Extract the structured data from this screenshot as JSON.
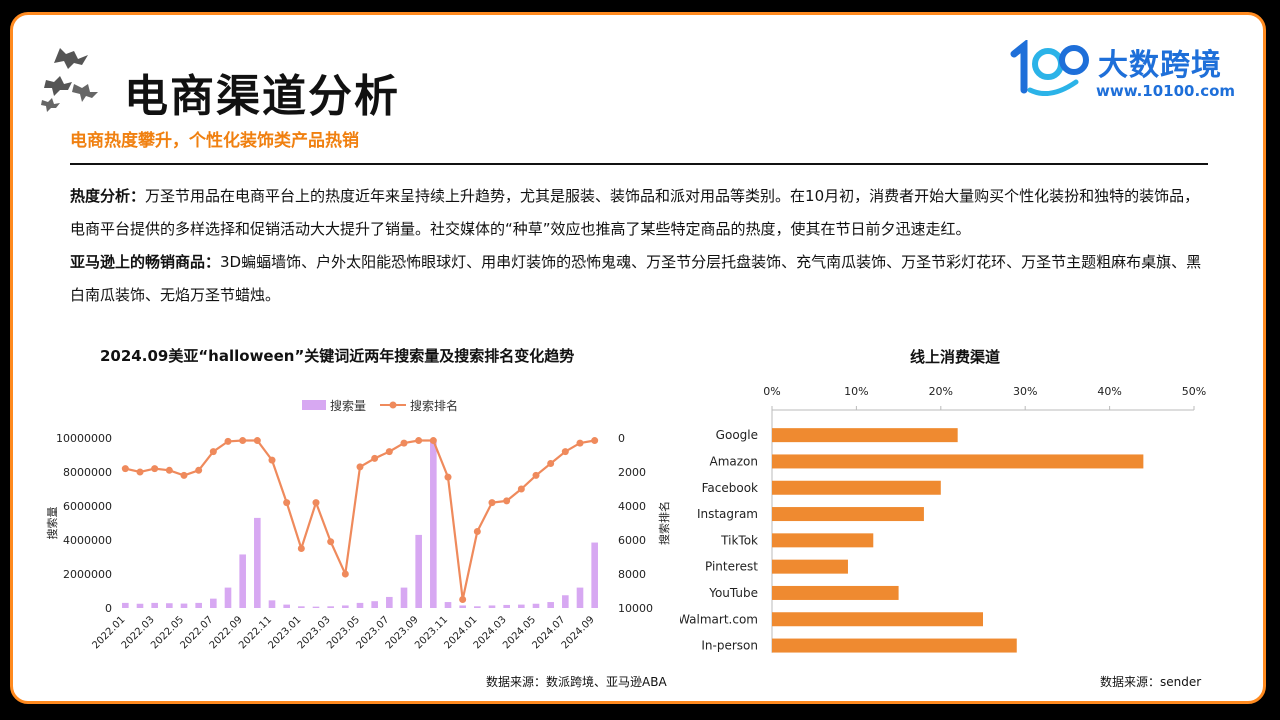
{
  "header": {
    "title": "电商渠道分析",
    "subtitle": "电商热度攀升，个性化装饰类产品热销"
  },
  "logo": {
    "brand": "大数跨境",
    "url": "www.10100.com"
  },
  "body": {
    "p1_label": "热度分析：",
    "p1_text": "万圣节用品在电商平台上的热度近年来呈持续上升趋势，尤其是服装、装饰品和派对用品等类别。在10月初，消费者开始大量购买个性化装扮和独特的装饰品，电商平台提供的多样选择和促销活动大大提升了销量。社交媒体的“种草”效应也推高了某些特定商品的热度，使其在节日前夕迅速走红。",
    "p2_label": "亚马逊上的畅销商品：",
    "p2_text": "3D蝙蝠墙饰、户外太阳能恐怖眼球灯、用串灯装饰的恐怖鬼魂、万圣节分层托盘装饰、充气南瓜装饰、万圣节彩灯花环、万圣节主题粗麻布桌旗、黑白南瓜装饰、无焰万圣节蜡烛。"
  },
  "colors": {
    "accent": "#f08010",
    "frame": "#ff8a1f",
    "bar_purple": "#d7a8f2",
    "line_orange": "#ef8a5c",
    "hbar_orange": "#ef8a30",
    "logo_blue": "#1e6fd9"
  },
  "chart_data": [
    {
      "type": "bar+line",
      "title": "2024.09美亚“halloween”关键词近两年搜索量及搜索排名变化趋势",
      "ylabel": "搜索量",
      "y2label": "搜索排名",
      "y_ticks": [
        "10000000",
        "8000000",
        "6000000",
        "4000000",
        "2000000",
        "0"
      ],
      "y2_ticks": [
        "0",
        "2000",
        "4000",
        "6000",
        "8000",
        "10000"
      ],
      "ylim": [
        0,
        10000000
      ],
      "y2lim": [
        0,
        10000
      ],
      "y2_inverted": true,
      "legend": [
        "搜索量",
        "搜索排名"
      ],
      "legend_position": "top",
      "x_tick_labels": [
        "2022.01",
        "2022.03",
        "2022.05",
        "2022.07",
        "2022.09",
        "2022.11",
        "2023.01",
        "2023.03",
        "2023.05",
        "2023.07",
        "2023.09",
        "2023.11",
        "2024.01",
        "2024.03",
        "2024.05",
        "2024.07",
        "2024.09"
      ],
      "x": [
        "2022.01",
        "2022.02",
        "2022.03",
        "2022.04",
        "2022.05",
        "2022.06",
        "2022.07",
        "2022.08",
        "2022.09",
        "2022.10",
        "2022.11",
        "2022.12",
        "2023.01",
        "2023.02",
        "2023.03",
        "2023.04",
        "2023.05",
        "2023.06",
        "2023.07",
        "2023.08",
        "2023.09",
        "2023.10",
        "2023.11",
        "2023.12",
        "2024.01",
        "2024.02",
        "2024.03",
        "2024.04",
        "2024.05",
        "2024.06",
        "2024.07",
        "2024.08",
        "2024.09"
      ],
      "series": [
        {
          "name": "搜索量",
          "kind": "bar",
          "values": [
            300000,
            250000,
            300000,
            280000,
            260000,
            300000,
            550000,
            1200000,
            3150000,
            5300000,
            450000,
            200000,
            100000,
            80000,
            100000,
            150000,
            300000,
            400000,
            650000,
            1200000,
            4300000,
            9800000,
            350000,
            150000,
            100000,
            150000,
            180000,
            200000,
            250000,
            350000,
            750000,
            1200000,
            3850000
          ]
        },
        {
          "name": "搜索排名",
          "kind": "line",
          "axis": "right",
          "values": [
            1800,
            2000,
            1800,
            1900,
            2200,
            1900,
            800,
            200,
            150,
            150,
            1300,
            3800,
            6500,
            3800,
            6100,
            8000,
            1700,
            1200,
            800,
            300,
            150,
            150,
            2300,
            9500,
            5500,
            3800,
            3700,
            3000,
            2200,
            1500,
            800,
            300,
            150
          ]
        }
      ]
    },
    {
      "type": "bar",
      "orientation": "horizontal",
      "title": "线上消费渠道",
      "categories": [
        "Google",
        "Amazon",
        "Facebook",
        "Instagram",
        "TikTok",
        "Pinterest",
        "YouTube",
        "Walmart.com",
        "In-person"
      ],
      "values": [
        22,
        44,
        20,
        18,
        12,
        9,
        15,
        25,
        29
      ],
      "x_ticks": [
        "0%",
        "10%",
        "20%",
        "30%",
        "40%",
        "50%"
      ],
      "xlim": [
        0,
        50
      ],
      "axis_position": "top"
    }
  ],
  "sources": {
    "left": "数据来源：数派跨境、亚马逊ABA",
    "right": "数据来源：sender"
  }
}
